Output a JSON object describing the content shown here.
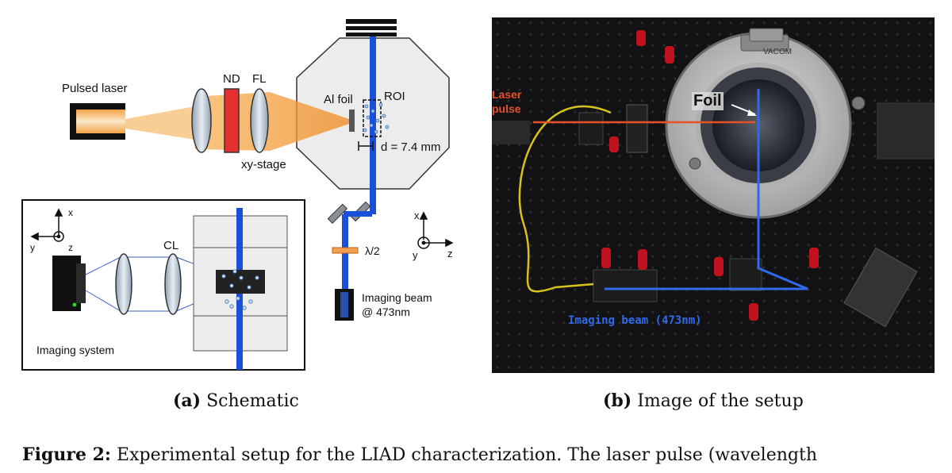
{
  "schematic": {
    "pulsed_laser": "Pulsed laser",
    "nd": "ND",
    "fl": "FL",
    "xy_stage": "xy-stage",
    "al_foil": "Al foil",
    "roi": "ROI",
    "distance": "d = 7.4 mm",
    "half_wave": "λ/2",
    "imaging_beam_line1": "Imaging beam",
    "imaging_beam_line2": "@ 473nm",
    "cl": "CL",
    "imaging_system": "Imaging system",
    "axis_x": "x",
    "axis_y": "y",
    "axis_z": "z"
  },
  "photo": {
    "laser_pulse_line1": "Laser",
    "laser_pulse_line2": "pulse",
    "foil": "Foil",
    "imaging_beam": "Imaging beam (473nm)",
    "chamber_brand": "VACOM"
  },
  "captions": {
    "a_label": "(a)",
    "a_text": "Schematic",
    "b_label": "(b)",
    "b_text": "Image of the setup",
    "figure_label": "Figure 2:",
    "figure_text": "Experimental setup for the LIAD characterization.  The laser pulse (wavelength"
  },
  "colors": {
    "blue_beam": "#1a4fd8",
    "orange_beam": "#f28c28",
    "red_filter": "#e53030",
    "laser_label_photo": "#e8502a",
    "beam_label_photo": "#2f6be8"
  }
}
